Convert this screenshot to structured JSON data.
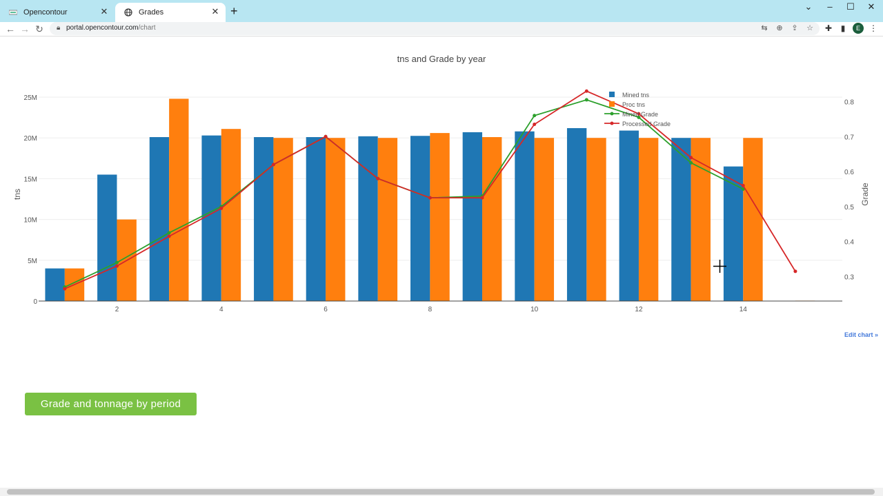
{
  "browser": {
    "tabs": [
      {
        "title": "Opencontour",
        "active": false
      },
      {
        "title": "Grades",
        "active": true
      }
    ],
    "url_host": "portal.opencontour.com",
    "url_path": "/chart",
    "avatar_letter": "E",
    "icons": {
      "back": "back-arrow-icon",
      "forward": "forward-arrow-icon",
      "reload": "reload-icon",
      "lock": "lock-icon",
      "translate": "translate-icon",
      "zoom": "zoom-icon",
      "share": "share-icon",
      "bookmark": "star-icon",
      "extensions": "puzzle-icon",
      "sidepanel": "side-panel-icon",
      "menu": "kebab-menu-icon"
    }
  },
  "page": {
    "edit_chart_label": "Edit chart »",
    "green_button_label": "Grade and tonnage by period",
    "colors": {
      "mined": "#1f77b4",
      "proc": "#ff7f0e",
      "mined_grade": "#2ca02c",
      "processed_grade": "#d62728",
      "button": "#7ac143"
    }
  },
  "chart_data": {
    "type": "bar",
    "title": "tns and Grade by year",
    "ylabel": "tns",
    "y2label": "Grade",
    "x": [
      1,
      2,
      3,
      4,
      5,
      6,
      7,
      8,
      9,
      10,
      11,
      12,
      13,
      14,
      15
    ],
    "xticks": [
      2,
      4,
      6,
      8,
      10,
      12,
      14
    ],
    "yticks": [
      0,
      5,
      10,
      15,
      20,
      25
    ],
    "ytick_labels": [
      "0",
      "5M",
      "10M",
      "15M",
      "20M",
      "25M"
    ],
    "y2ticks": [
      0.3,
      0.4,
      0.5,
      0.6,
      0.7,
      0.8
    ],
    "xlim": [
      0.5,
      15.9
    ],
    "ylim": [
      0,
      25
    ],
    "y2lim": [
      0.23,
      0.86
    ],
    "legend_position": "top-right",
    "series": [
      {
        "name": "Mined tns",
        "kind": "bar",
        "axis": "y",
        "values": [
          4.0,
          15.5,
          20.1,
          20.3,
          20.1,
          20.1,
          20.2,
          20.25,
          20.7,
          20.8,
          21.2,
          20.9,
          20.0,
          16.5,
          0.0
        ]
      },
      {
        "name": "Proc tns",
        "kind": "bar",
        "axis": "y",
        "values": [
          4.0,
          10.0,
          24.8,
          21.1,
          20.0,
          20.0,
          20.0,
          20.6,
          20.1,
          20.0,
          20.0,
          20.0,
          20.0,
          20.0,
          0.05
        ]
      },
      {
        "name": "Mined Grade",
        "kind": "line",
        "axis": "y2",
        "values": [
          0.27,
          0.34,
          0.425,
          0.5,
          0.62,
          0.7,
          0.58,
          0.525,
          0.53,
          0.76,
          0.805,
          0.755,
          0.625,
          0.55,
          null
        ]
      },
      {
        "name": "Processed Grade",
        "kind": "line",
        "axis": "y2",
        "values": [
          0.265,
          0.33,
          0.415,
          0.495,
          0.62,
          0.7,
          0.58,
          0.525,
          0.525,
          0.735,
          0.83,
          0.765,
          0.64,
          0.56,
          0.315
        ]
      }
    ]
  }
}
